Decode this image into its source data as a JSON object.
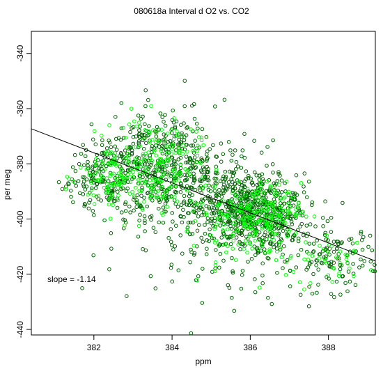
{
  "chart_data": {
    "type": "scatter",
    "title": "080618a   Interval d O2 vs. CO2",
    "xlabel": "ppm",
    "ylabel": "per meg",
    "xlim": [
      380.4,
      389.2
    ],
    "ylim": [
      -442,
      -332
    ],
    "x_ticks": [
      382,
      384,
      386,
      388
    ],
    "y_ticks": [
      -340,
      -360,
      -380,
      -400,
      -420,
      -440
    ],
    "annotation": "slope =  -1.14",
    "regression_line": {
      "slope": -1.14,
      "points": [
        [
          380.4,
          -367.3
        ],
        [
          389.2,
          -415.2
        ]
      ]
    },
    "series": [
      {
        "color": "#006400",
        "marker": "open-circle",
        "clusters": [
          {
            "center": [
              382.4,
              -386
            ],
            "spread": [
              0.55,
              8
            ],
            "count": 220
          },
          {
            "center": [
              383.8,
              -380
            ],
            "spread": [
              0.65,
              10
            ],
            "count": 330
          },
          {
            "center": [
              385.2,
              -392
            ],
            "spread": [
              0.7,
              10
            ],
            "count": 260
          },
          {
            "center": [
              386.3,
              -397
            ],
            "spread": [
              0.6,
              6
            ],
            "count": 360
          },
          {
            "center": [
              386.0,
              -405
            ],
            "spread": [
              0.9,
              9
            ],
            "count": 160
          },
          {
            "center": [
              388.2,
              -414
            ],
            "spread": [
              0.55,
              6
            ],
            "count": 110
          },
          {
            "center": [
              384.5,
              -408
            ],
            "spread": [
              1.4,
              14
            ],
            "count": 60
          }
        ]
      },
      {
        "color": "#00ff00",
        "marker": "open-circle",
        "clusters": [
          {
            "center": [
              382.6,
              -385
            ],
            "spread": [
              0.5,
              7
            ],
            "count": 120
          },
          {
            "center": [
              383.7,
              -380
            ],
            "spread": [
              0.5,
              8
            ],
            "count": 160
          },
          {
            "center": [
              386.2,
              -397
            ],
            "spread": [
              0.55,
              5
            ],
            "count": 180
          },
          {
            "center": [
              386.0,
              -407
            ],
            "spread": [
              0.8,
              7
            ],
            "count": 70
          },
          {
            "center": [
              388.2,
              -415
            ],
            "spread": [
              0.5,
              5
            ],
            "count": 40
          }
        ]
      }
    ],
    "grid": false,
    "legend": "none"
  }
}
